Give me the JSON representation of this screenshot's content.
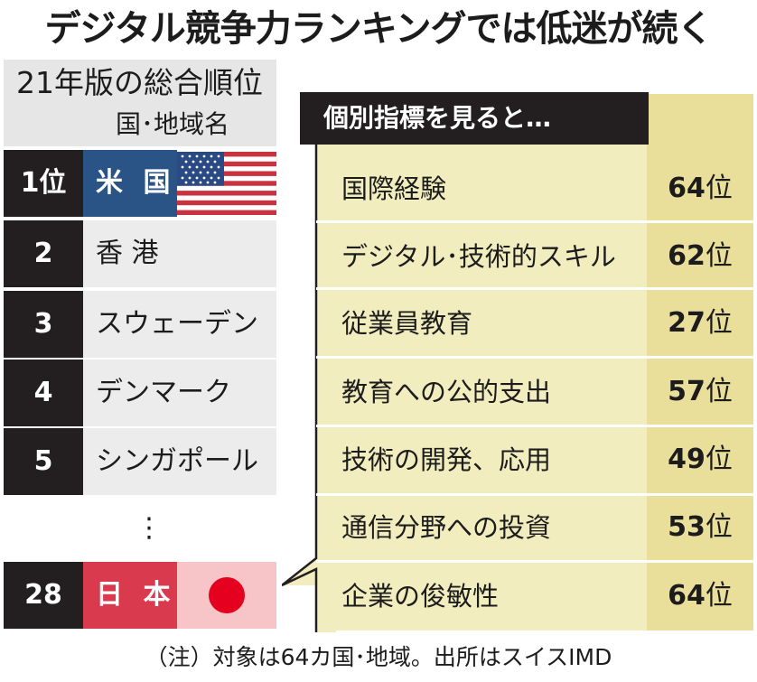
{
  "title": "デジタル競争力ランキングでは低迷が続く",
  "left": {
    "heading": "21年版の総合順位",
    "column_label": "国･地域名",
    "rows": [
      {
        "rank": "1位",
        "name": "米 国",
        "flag": "us-flag-icon"
      },
      {
        "rank": "2",
        "name": "香 港"
      },
      {
        "rank": "3",
        "name": "スウェーデン"
      },
      {
        "rank": "4",
        "name": "デンマーク"
      },
      {
        "rank": "5",
        "name": "シンガポール"
      }
    ],
    "ellipsis": "⋮",
    "japan": {
      "rank": "28",
      "name": "日 本",
      "flag": "japan-flag-icon"
    }
  },
  "right": {
    "heading": "個別指標を見ると…",
    "rank_suffix": "位",
    "indicators": [
      {
        "label": "国際経験",
        "rank": "64"
      },
      {
        "label": "デジタル･技術的スキル",
        "rank": "62"
      },
      {
        "label": "従業員教育",
        "rank": "27"
      },
      {
        "label": "教育への公的支出",
        "rank": "57"
      },
      {
        "label": "技術の開発、応用",
        "rank": "49"
      },
      {
        "label": "通信分野への投資",
        "rank": "53"
      },
      {
        "label": "企業の俊敏性",
        "rank": "64"
      }
    ]
  },
  "note": "（注）対象は64カ国･地域。出所はスイスIMD",
  "colors": {
    "dark": "#231f20",
    "us_blue": "#2a5486",
    "japan_red": "#d93a4e",
    "panel_yellow": "#f2edbf",
    "rank_column_yellow": "#e9df9a"
  }
}
